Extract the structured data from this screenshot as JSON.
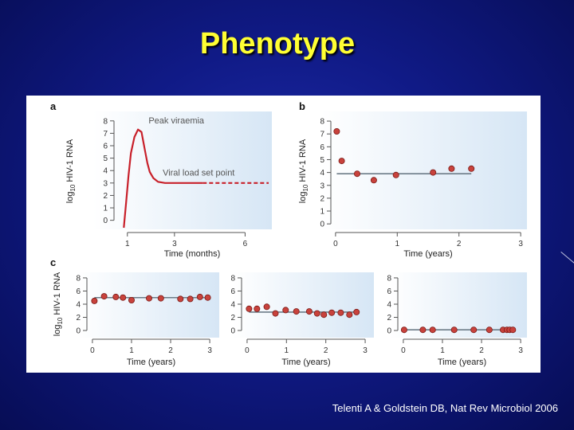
{
  "slide": {
    "title": "Phenotype",
    "citation": "Telenti A & Goldstein DB, Nat Rev Microbiol 2006"
  },
  "colors": {
    "point_fill": "#c8423c",
    "point_stroke": "#7a1a16",
    "curve": "#c8202a",
    "setpoint_line": "#6d7c88",
    "panel_gradient": "#dbe9f6",
    "axis": "#555555"
  },
  "chart_data": [
    {
      "panel": "a",
      "type": "line",
      "panel_label": "a",
      "xlabel": "Time (months)",
      "ylabel": "log10 HIV-1 RNA",
      "xlim": [
        0.5,
        7
      ],
      "ylim": [
        -0.6,
        8.5
      ],
      "x_ticks": [
        1,
        3,
        6
      ],
      "y_ticks": [
        0,
        1,
        2,
        3,
        4,
        5,
        6,
        7,
        8
      ],
      "annotations": [
        "Peak viraemia",
        "Viral load set point"
      ],
      "series": [
        {
          "style": "solid",
          "x": [
            0.85,
            0.95,
            1.05,
            1.15,
            1.3,
            1.45,
            1.6,
            1.75,
            1.85,
            1.95,
            2.1,
            2.3,
            2.6,
            3.0,
            3.5,
            4.2
          ],
          "y": [
            -0.6,
            1.5,
            3.6,
            5.4,
            6.7,
            7.3,
            7.1,
            5.6,
            4.6,
            3.9,
            3.4,
            3.1,
            3.0,
            3.0,
            3.0,
            3.0
          ]
        },
        {
          "style": "dashed",
          "x": [
            4.2,
            5.0,
            6.0,
            7.0
          ],
          "y": [
            3.0,
            3.0,
            3.0,
            3.0
          ]
        }
      ]
    },
    {
      "panel": "b",
      "type": "scatter",
      "panel_label": "b",
      "xlabel": "Time (years)",
      "ylabel": "log10 HIV-1 RNA",
      "xlim": [
        -0.05,
        3.05
      ],
      "ylim": [
        -0.3,
        8.5
      ],
      "x_ticks": [
        0,
        1,
        2,
        3
      ],
      "y_ticks": [
        0,
        1,
        2,
        3,
        4,
        5,
        6,
        7,
        8
      ],
      "setpoint": 3.9,
      "points": {
        "x": [
          0.02,
          0.1,
          0.35,
          0.62,
          0.98,
          1.58,
          1.88,
          2.2
        ],
        "y": [
          7.2,
          4.9,
          3.9,
          3.4,
          3.8,
          4.0,
          4.3,
          4.3
        ]
      }
    },
    {
      "panel": "c1",
      "type": "scatter",
      "panel_label": "c",
      "xlabel": "Time (years)",
      "ylabel": "log10 HIV-1 RNA",
      "xlim": [
        -0.1,
        3.1
      ],
      "ylim": [
        -0.6,
        8.6
      ],
      "x_ticks": [
        0,
        1,
        2,
        3
      ],
      "y_ticks": [
        0,
        2,
        4,
        6,
        8
      ],
      "setpoint": 5.0,
      "points": {
        "x": [
          0.05,
          0.3,
          0.6,
          0.78,
          1.0,
          1.45,
          1.75,
          2.25,
          2.5,
          2.75,
          2.95
        ],
        "y": [
          4.5,
          5.2,
          5.1,
          5.0,
          4.6,
          4.9,
          4.9,
          4.8,
          4.8,
          5.1,
          5.0
        ]
      }
    },
    {
      "panel": "c2",
      "type": "scatter",
      "panel_label": "",
      "xlabel": "Time (years)",
      "ylabel": "",
      "xlim": [
        -0.1,
        3.1
      ],
      "ylim": [
        -0.6,
        8.6
      ],
      "x_ticks": [
        0,
        1,
        2,
        3
      ],
      "y_ticks": [
        0,
        2,
        4,
        6,
        8
      ],
      "setpoint": 2.8,
      "points": {
        "x": [
          0.05,
          0.25,
          0.5,
          0.72,
          0.98,
          1.25,
          1.58,
          1.78,
          1.95,
          2.15,
          2.38,
          2.6,
          2.78
        ],
        "y": [
          3.3,
          3.3,
          3.6,
          2.6,
          3.1,
          2.9,
          2.9,
          2.6,
          2.4,
          2.7,
          2.7,
          2.4,
          2.8
        ]
      }
    },
    {
      "panel": "c3",
      "type": "scatter",
      "panel_label": "",
      "xlabel": "Time (years)",
      "ylabel": "",
      "xlim": [
        -0.1,
        3.1
      ],
      "ylim": [
        -0.6,
        8.6
      ],
      "x_ticks": [
        0,
        1,
        2,
        3
      ],
      "y_ticks": [
        0,
        2,
        4,
        6,
        8
      ],
      "setpoint": 0.1,
      "points": {
        "x": [
          0.02,
          0.5,
          0.75,
          1.3,
          1.8,
          2.2,
          2.55,
          2.65,
          2.72,
          2.8
        ],
        "y": [
          0.1,
          0.1,
          0.1,
          0.1,
          0.1,
          0.1,
          0.1,
          0.1,
          0.1,
          0.1
        ]
      }
    }
  ]
}
